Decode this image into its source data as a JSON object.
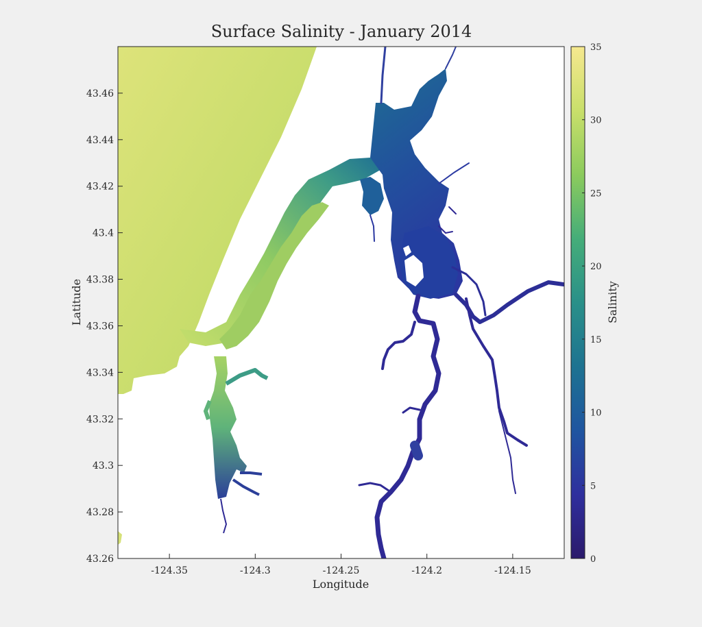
{
  "title": "Surface Salinity - January 2014",
  "x_axis": {
    "label": "Longitude",
    "range": [
      -124.38,
      -124.12
    ],
    "ticks": [
      -124.35,
      -124.3,
      -124.25,
      -124.2,
      -124.15
    ],
    "tick_labels": [
      "-124.35",
      "-124.3",
      "-124.25",
      "-124.2",
      "-124.15"
    ]
  },
  "y_axis": {
    "label": "Latitude",
    "range": [
      43.26,
      43.48
    ],
    "ticks": [
      43.26,
      43.28,
      43.3,
      43.32,
      43.34,
      43.36,
      43.38,
      43.4,
      43.42,
      43.44,
      43.46
    ],
    "tick_labels": [
      "43.26",
      "43.28",
      "43.3",
      "43.32",
      "43.34",
      "43.36",
      "43.38",
      "43.4",
      "43.42",
      "43.44",
      "43.46"
    ]
  },
  "colorbar": {
    "label": "Salinity",
    "range": [
      0,
      35
    ],
    "ticks": [
      0,
      5,
      10,
      15,
      20,
      25,
      30,
      35
    ],
    "tick_labels": [
      "0",
      "5",
      "10",
      "15",
      "20",
      "25",
      "30",
      "35"
    ],
    "colormap": [
      "#2b1a6b",
      "#2f2f9e",
      "#1f55a0",
      "#1e7391",
      "#2a9089",
      "#45ad79",
      "#8ccb5d",
      "#c9df6b",
      "#f6e88f"
    ]
  },
  "colors": {
    "ocean": "#c3dc6a",
    "bay_mouth": "#aed46a",
    "bay_mid": "#5fb37a",
    "bay_upper": "#2e8b8a",
    "estuary": "#1d6c92",
    "upper_river": "#2b3aa2",
    "tributary": "#2f2a95",
    "south_slough": "#4aa582"
  }
}
